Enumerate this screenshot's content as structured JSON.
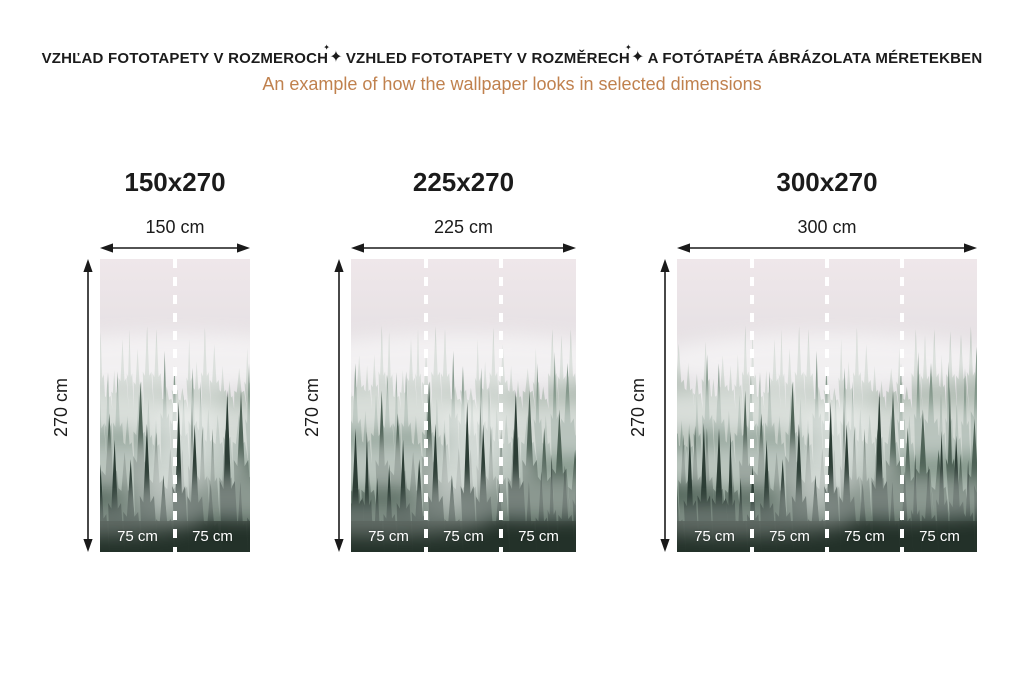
{
  "header": {
    "title_parts": [
      "VZHĽAD FOTOTAPETY V ROZMEROCH",
      "VZHLED FOTOTAPETY V ROZMĚRECH",
      "A FOTÓTAPÉTA ÁBRÁZOLATA MÉRETEKBEN"
    ],
    "separator_glyph": "✦",
    "subtitle": "An example of how the wallpaper looks in selected dimensions"
  },
  "colors": {
    "title_text": "#1b1b1b",
    "subtitle_accent": "#c0814e",
    "arrow": "#1a1a1a",
    "seam_and_labels": "#ffffff",
    "forest_sky_top": "#efe7ea",
    "forest_dark_bottom": "#223028"
  },
  "panels": [
    {
      "title": "150x270",
      "width_label": "150 cm",
      "height_label": "270 cm",
      "width_cm": 150,
      "height_cm": 270,
      "segments": [
        "75 cm",
        "75 cm"
      ]
    },
    {
      "title": "225x270",
      "width_label": "225 cm",
      "height_label": "270 cm",
      "width_cm": 225,
      "height_cm": 270,
      "segments": [
        "75 cm",
        "75 cm",
        "75 cm"
      ]
    },
    {
      "title": "300x270",
      "width_label": "300 cm",
      "height_label": "270 cm",
      "width_cm": 300,
      "height_cm": 270,
      "segments": [
        "75 cm",
        "75 cm",
        "75 cm",
        "75 cm"
      ]
    }
  ],
  "image": {
    "semantic_name": "foggy-forest-wallpaper-photo"
  }
}
